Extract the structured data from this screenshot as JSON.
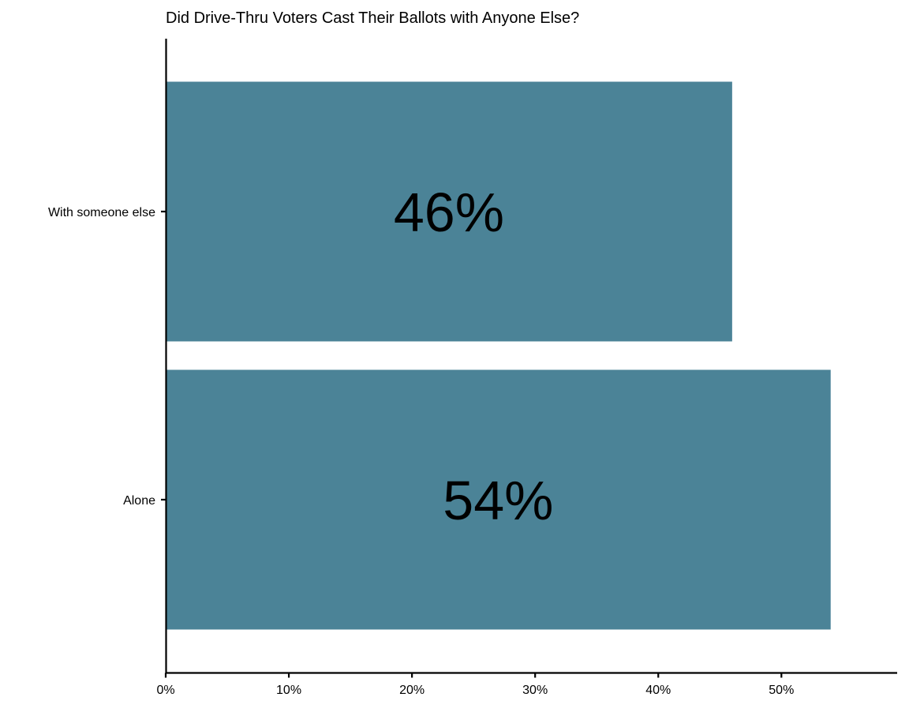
{
  "chart_data": {
    "type": "bar",
    "orientation": "horizontal",
    "title": "Did Drive-Thru Voters Cast Their Ballots with Anyone Else?",
    "xlabel": "",
    "ylabel": "",
    "categories": [
      "With someone else",
      "Alone"
    ],
    "values": [
      46,
      54
    ],
    "data_labels": [
      "46%",
      "54%"
    ],
    "x_ticks": [
      0,
      10,
      20,
      30,
      40,
      50
    ],
    "x_tick_labels": [
      "0%",
      "10%",
      "20%",
      "30%",
      "40%",
      "50%"
    ],
    "xlim": [
      0,
      59.4
    ],
    "grid": false,
    "legend": "none",
    "bar_color": "#4b8397",
    "axis_color": "#000000"
  }
}
